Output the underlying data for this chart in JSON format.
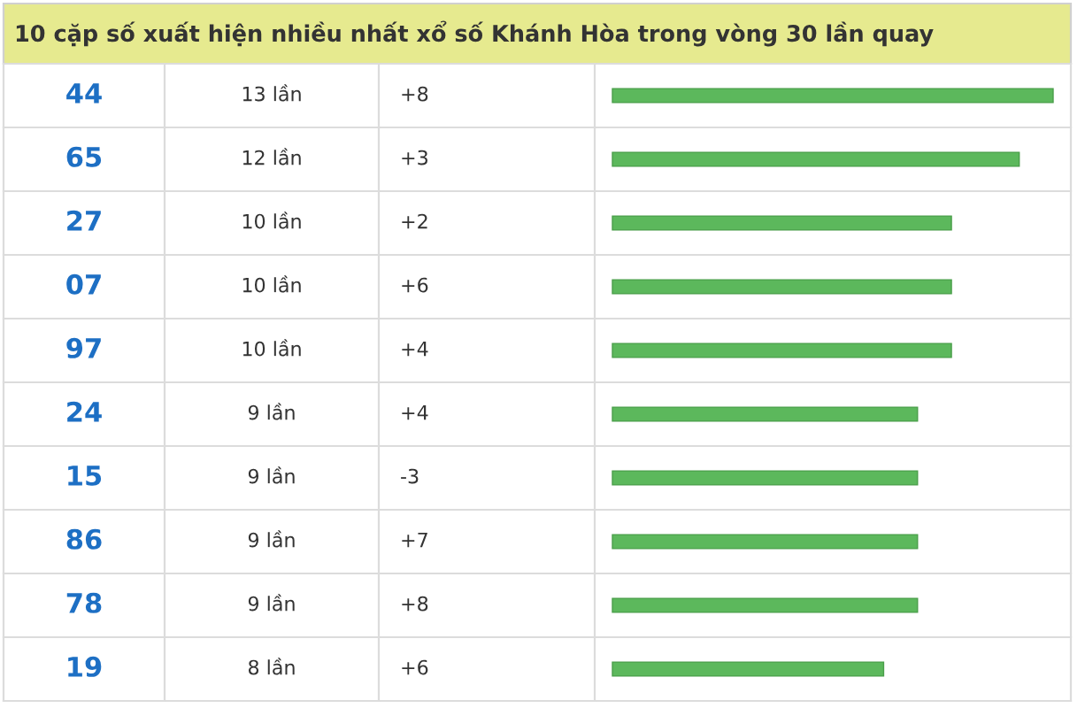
{
  "chart_data": {
    "type": "bar",
    "orientation": "horizontal",
    "title": "10 cặp số xuất hiện nhiều nhất xổ số Khánh Hòa trong vòng 30 lần quay",
    "categories": [
      "44",
      "65",
      "27",
      "07",
      "97",
      "24",
      "15",
      "86",
      "78",
      "19"
    ],
    "values": [
      13,
      12,
      10,
      10,
      10,
      9,
      9,
      9,
      9,
      8
    ],
    "value_labels": [
      "13 lần",
      "12 lần",
      "10 lần",
      "10 lần",
      "10 lần",
      "9 lần",
      "9 lần",
      "9 lần",
      "9 lần",
      "8 lần"
    ],
    "color": "#5cb85c",
    "annotations": [
      "+8",
      "+3",
      "+2",
      "+6",
      "+4",
      "+4",
      "-3",
      "+7",
      "+8",
      "+6"
    ]
  }
}
